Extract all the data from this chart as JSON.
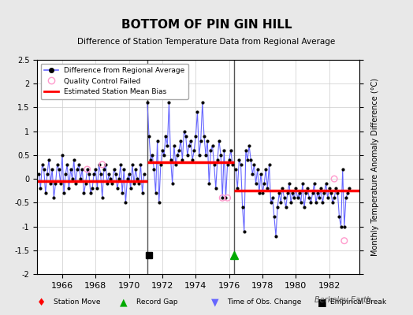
{
  "title": "BOTTOM OF PIN GIN HILL",
  "subtitle": "Difference of Station Temperature Data from Regional Average",
  "ylabel": "Monthly Temperature Anomaly Difference (°C)",
  "xlim": [
    1964.5,
    1983.8
  ],
  "ylim": [
    -2.0,
    2.5
  ],
  "yticks": [
    -2,
    -1.5,
    -1,
    -0.5,
    0,
    0.5,
    1,
    1.5,
    2,
    2.5
  ],
  "xticks": [
    1966,
    1968,
    1970,
    1972,
    1974,
    1976,
    1978,
    1980,
    1982
  ],
  "background_color": "#e8e8e8",
  "plot_bg_color": "#ffffff",
  "grid_color": "#cccccc",
  "bias_color": "#ff0000",
  "line_color": "#6666ff",
  "marker_color": "#000000",
  "qc_color": "#ff99cc",
  "segments": [
    {
      "x_start": 1964.5,
      "x_end": 1971.1,
      "bias": -0.05
    },
    {
      "x_start": 1971.1,
      "x_end": 1976.3,
      "bias": 0.35
    },
    {
      "x_start": 1976.3,
      "x_end": 1983.8,
      "bias": -0.25
    }
  ],
  "break_lines": [
    1971.1,
    1976.3
  ],
  "empirical_break_x": 1971.2,
  "empirical_break_y": -1.6,
  "record_gap_x": 1976.3,
  "record_gap_y": -1.6,
  "data_x": [
    1964.6,
    1964.7,
    1964.8,
    1964.9,
    1965.0,
    1965.1,
    1965.2,
    1965.3,
    1965.4,
    1965.5,
    1965.6,
    1965.7,
    1965.8,
    1965.9,
    1966.0,
    1966.1,
    1966.2,
    1966.3,
    1966.4,
    1966.5,
    1966.6,
    1966.7,
    1966.8,
    1966.9,
    1967.0,
    1967.1,
    1967.2,
    1967.3,
    1967.4,
    1967.5,
    1967.6,
    1967.7,
    1967.8,
    1967.9,
    1968.0,
    1968.1,
    1968.2,
    1968.3,
    1968.4,
    1968.5,
    1968.6,
    1968.7,
    1968.8,
    1968.9,
    1969.0,
    1969.1,
    1969.2,
    1969.3,
    1969.4,
    1969.5,
    1969.6,
    1969.7,
    1969.8,
    1969.9,
    1970.0,
    1970.1,
    1970.2,
    1970.3,
    1970.4,
    1970.5,
    1970.6,
    1970.7,
    1970.8,
    1970.9,
    1971.1,
    1971.2,
    1971.3,
    1971.4,
    1971.5,
    1971.6,
    1971.7,
    1971.8,
    1971.9,
    1972.0,
    1972.1,
    1972.2,
    1972.3,
    1972.4,
    1972.5,
    1972.6,
    1972.7,
    1972.8,
    1972.9,
    1973.0,
    1973.1,
    1973.2,
    1973.3,
    1973.4,
    1973.5,
    1973.6,
    1973.7,
    1973.8,
    1973.9,
    1974.0,
    1974.1,
    1974.2,
    1974.3,
    1974.4,
    1974.5,
    1974.6,
    1974.7,
    1974.8,
    1974.9,
    1975.0,
    1975.1,
    1975.2,
    1975.3,
    1975.4,
    1975.5,
    1975.6,
    1975.7,
    1975.8,
    1975.9,
    1976.0,
    1976.1,
    1976.2,
    1976.4,
    1976.5,
    1976.6,
    1976.7,
    1976.8,
    1976.9,
    1977.0,
    1977.1,
    1977.2,
    1977.3,
    1977.4,
    1977.5,
    1977.6,
    1977.7,
    1977.8,
    1977.9,
    1978.0,
    1978.1,
    1978.2,
    1978.3,
    1978.4,
    1978.5,
    1978.6,
    1978.7,
    1978.8,
    1978.9,
    1979.0,
    1979.1,
    1979.2,
    1979.3,
    1979.4,
    1979.5,
    1979.6,
    1979.7,
    1979.8,
    1979.9,
    1980.0,
    1980.1,
    1980.2,
    1980.3,
    1980.4,
    1980.5,
    1980.6,
    1980.7,
    1980.8,
    1980.9,
    1981.0,
    1981.1,
    1981.2,
    1981.3,
    1981.4,
    1981.5,
    1981.6,
    1981.7,
    1981.8,
    1981.9,
    1982.0,
    1982.1,
    1982.2,
    1982.3,
    1982.4,
    1982.5,
    1982.6,
    1982.7,
    1982.8,
    1982.9,
    1983.0,
    1983.1,
    1983.2
  ],
  "data_y": [
    0.1,
    -0.2,
    0.3,
    0.2,
    -0.3,
    0.1,
    0.4,
    -0.1,
    0.2,
    -0.4,
    -0.1,
    0.3,
    0.2,
    -0.1,
    0.5,
    -0.3,
    0.1,
    0.3,
    -0.2,
    0.2,
    0.0,
    0.4,
    -0.1,
    0.2,
    0.3,
    0.0,
    0.2,
    -0.3,
    -0.1,
    0.2,
    0.1,
    -0.3,
    -0.2,
    0.1,
    0.2,
    -0.2,
    0.3,
    0.1,
    -0.4,
    0.2,
    0.3,
    -0.1,
    0.1,
    0.0,
    -0.1,
    0.2,
    0.1,
    -0.2,
    0.0,
    0.3,
    -0.3,
    0.2,
    -0.5,
    0.0,
    0.1,
    -0.2,
    0.3,
    -0.1,
    0.2,
    0.0,
    -0.1,
    0.3,
    -0.3,
    0.1,
    1.6,
    0.9,
    0.4,
    0.5,
    0.2,
    -0.3,
    0.8,
    -0.5,
    0.3,
    0.6,
    0.5,
    0.9,
    0.7,
    1.6,
    0.4,
    -0.1,
    0.7,
    0.3,
    0.5,
    0.6,
    0.8,
    0.4,
    1.0,
    0.9,
    0.5,
    0.7,
    0.8,
    0.4,
    0.6,
    0.9,
    1.4,
    0.5,
    0.8,
    1.6,
    0.9,
    0.5,
    0.8,
    -0.1,
    0.6,
    0.7,
    0.3,
    -0.2,
    0.4,
    0.8,
    0.5,
    -0.4,
    0.6,
    -0.4,
    0.3,
    0.4,
    0.6,
    0.3,
    0.2,
    -0.2,
    0.4,
    0.3,
    -0.6,
    -1.1,
    0.6,
    0.4,
    0.7,
    0.4,
    0.1,
    0.3,
    -0.1,
    0.2,
    -0.3,
    0.1,
    -0.3,
    -0.1,
    0.2,
    -0.2,
    0.3,
    -0.5,
    -0.4,
    -0.8,
    -1.2,
    -0.6,
    -0.3,
    -0.5,
    -0.2,
    -0.4,
    -0.6,
    -0.3,
    -0.1,
    -0.5,
    -0.3,
    -0.4,
    -0.2,
    -0.4,
    -0.3,
    -0.5,
    -0.1,
    -0.6,
    -0.3,
    -0.2,
    -0.4,
    -0.5,
    -0.3,
    -0.1,
    -0.5,
    -0.3,
    -0.4,
    -0.2,
    -0.5,
    -0.3,
    -0.1,
    -0.4,
    -0.2,
    -0.3,
    -0.5,
    -0.4,
    -0.2,
    -0.3,
    -0.8,
    -1.0,
    0.2,
    -1.0,
    -0.4,
    -0.3,
    -0.2
  ],
  "qc_failed_x": [
    1967.5,
    1968.4,
    1975.6,
    1975.9,
    1982.3,
    1982.9
  ],
  "qc_failed_y": [
    0.2,
    0.3,
    -0.4,
    -0.4,
    0.0,
    -1.3
  ],
  "berkeley_earth_text": "Berkeley Earth"
}
